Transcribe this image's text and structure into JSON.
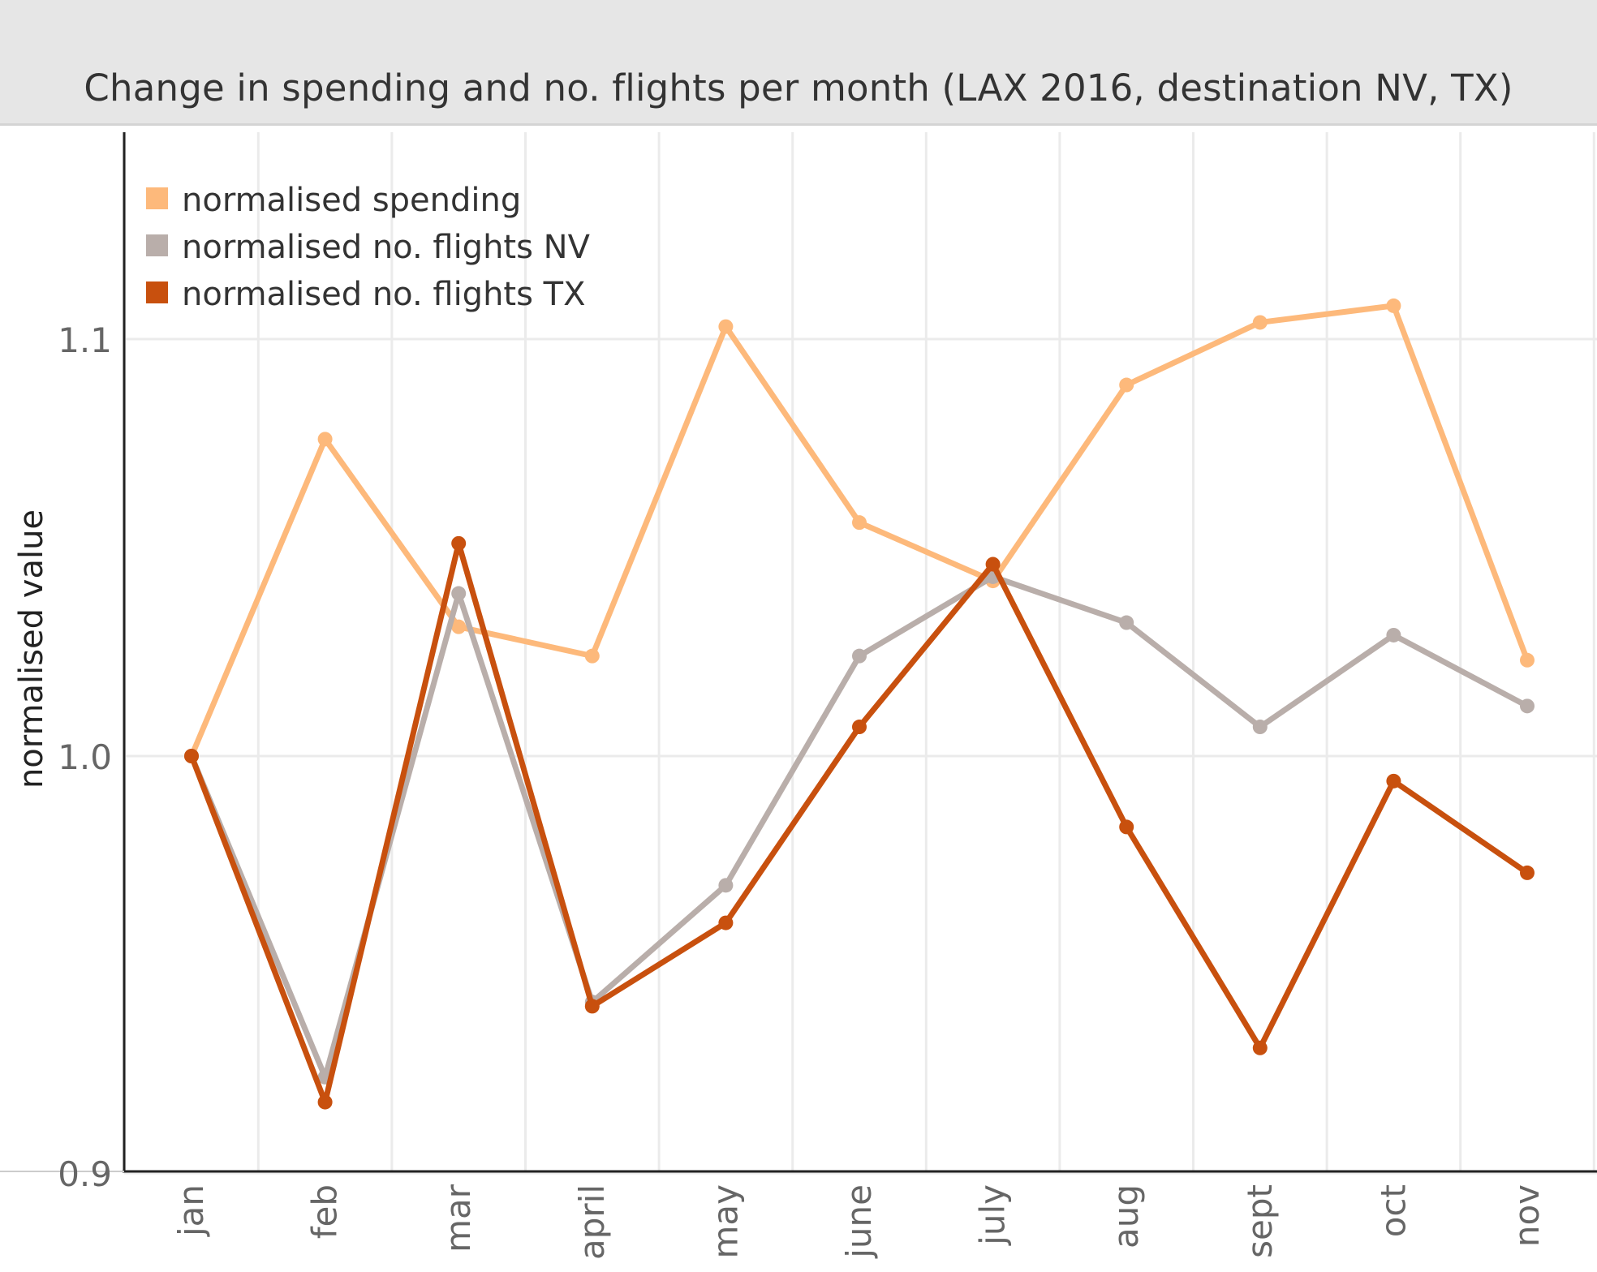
{
  "chart_data": {
    "type": "line",
    "title": "Change in spending and no. flights per month (LAX 2016, destination NV, TX)",
    "xlabel": "",
    "ylabel": "normalised value",
    "categories": [
      "jan",
      "feb",
      "mar",
      "april",
      "may",
      "june",
      "july",
      "aug",
      "sept",
      "oct",
      "nov"
    ],
    "ylim": [
      0.898,
      1.15
    ],
    "yticks": [
      0.9,
      1.0,
      1.1
    ],
    "ytick_labels": [
      "0.9",
      "1.0",
      "1.1"
    ],
    "grid": true,
    "legend_position": "top-left",
    "series": [
      {
        "name": "normalised spending",
        "color": "#fdb97b",
        "values": [
          1.0,
          1.076,
          1.031,
          1.024,
          1.103,
          1.056,
          1.042,
          1.089,
          1.104,
          1.108,
          1.023
        ]
      },
      {
        "name": "normalised no. flights NV",
        "color": "#b9aeaa",
        "values": [
          1.0,
          0.923,
          1.039,
          0.941,
          0.969,
          1.024,
          1.043,
          1.032,
          1.007,
          1.029,
          1.012
        ]
      },
      {
        "name": "normalised no. flights TX",
        "color": "#c8500e",
        "values": [
          1.0,
          0.917,
          1.051,
          0.94,
          0.96,
          1.007,
          1.046,
          0.983,
          0.93,
          0.994,
          0.972
        ]
      }
    ]
  }
}
